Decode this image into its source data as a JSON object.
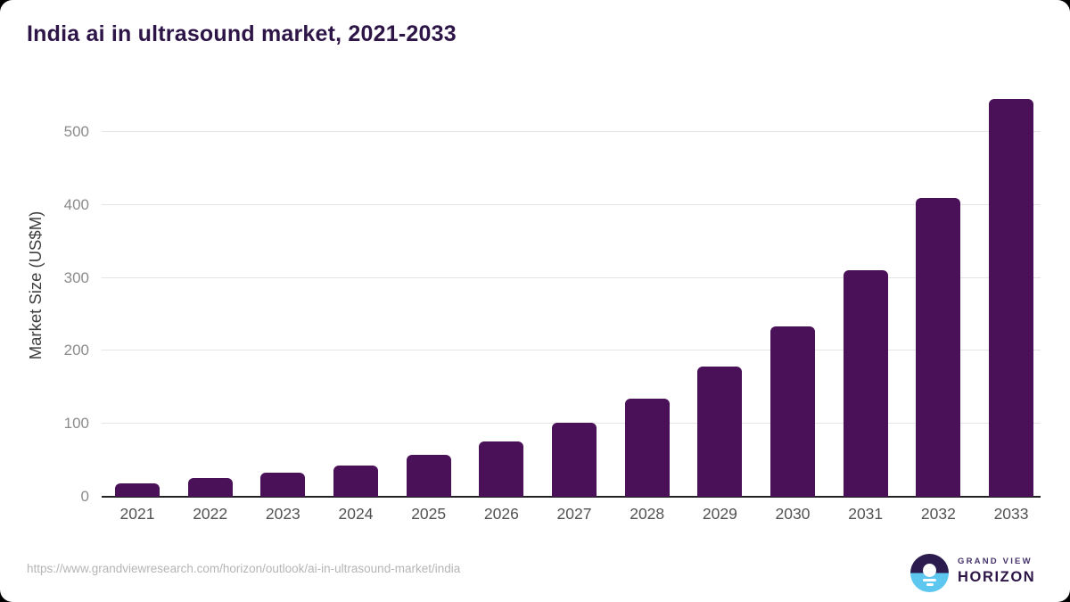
{
  "page": {
    "title": "India ai in ultrasound market, 2021-2033"
  },
  "chart_data": {
    "type": "bar",
    "title": "India ai in ultrasound market, 2021-2033",
    "categories": [
      "2021",
      "2022",
      "2023",
      "2024",
      "2025",
      "2026",
      "2027",
      "2028",
      "2029",
      "2030",
      "2031",
      "2032",
      "2033"
    ],
    "values": [
      18,
      26,
      33,
      43,
      58,
      76,
      101,
      134,
      178,
      234,
      311,
      410,
      545
    ],
    "xlabel": "",
    "ylabel": "Market Size (US$M)",
    "yticks": [
      0,
      100,
      200,
      300,
      400,
      500
    ],
    "ylim": [
      0,
      560
    ],
    "grid": true,
    "legend": false,
    "bar_color": "#4a1158"
  },
  "footer": {
    "source_url": "https://www.grandviewresearch.com/horizon/outlook/ai-in-ultrasound-market/india",
    "logo": {
      "line1": "GRAND VIEW",
      "line2": "HORIZON"
    }
  },
  "colors": {
    "title_text": "#2e1547",
    "bar": "#4a1158",
    "gridline": "#e4e4e4",
    "axis_line": "#222222",
    "tick_text": "#8b8b8b",
    "x_tick_text": "#525252",
    "url_text": "#b5b5b5",
    "logo_purple": "#2b1b4e",
    "logo_blue": "#5ec7ef",
    "card_bg": "#ffffff"
  }
}
